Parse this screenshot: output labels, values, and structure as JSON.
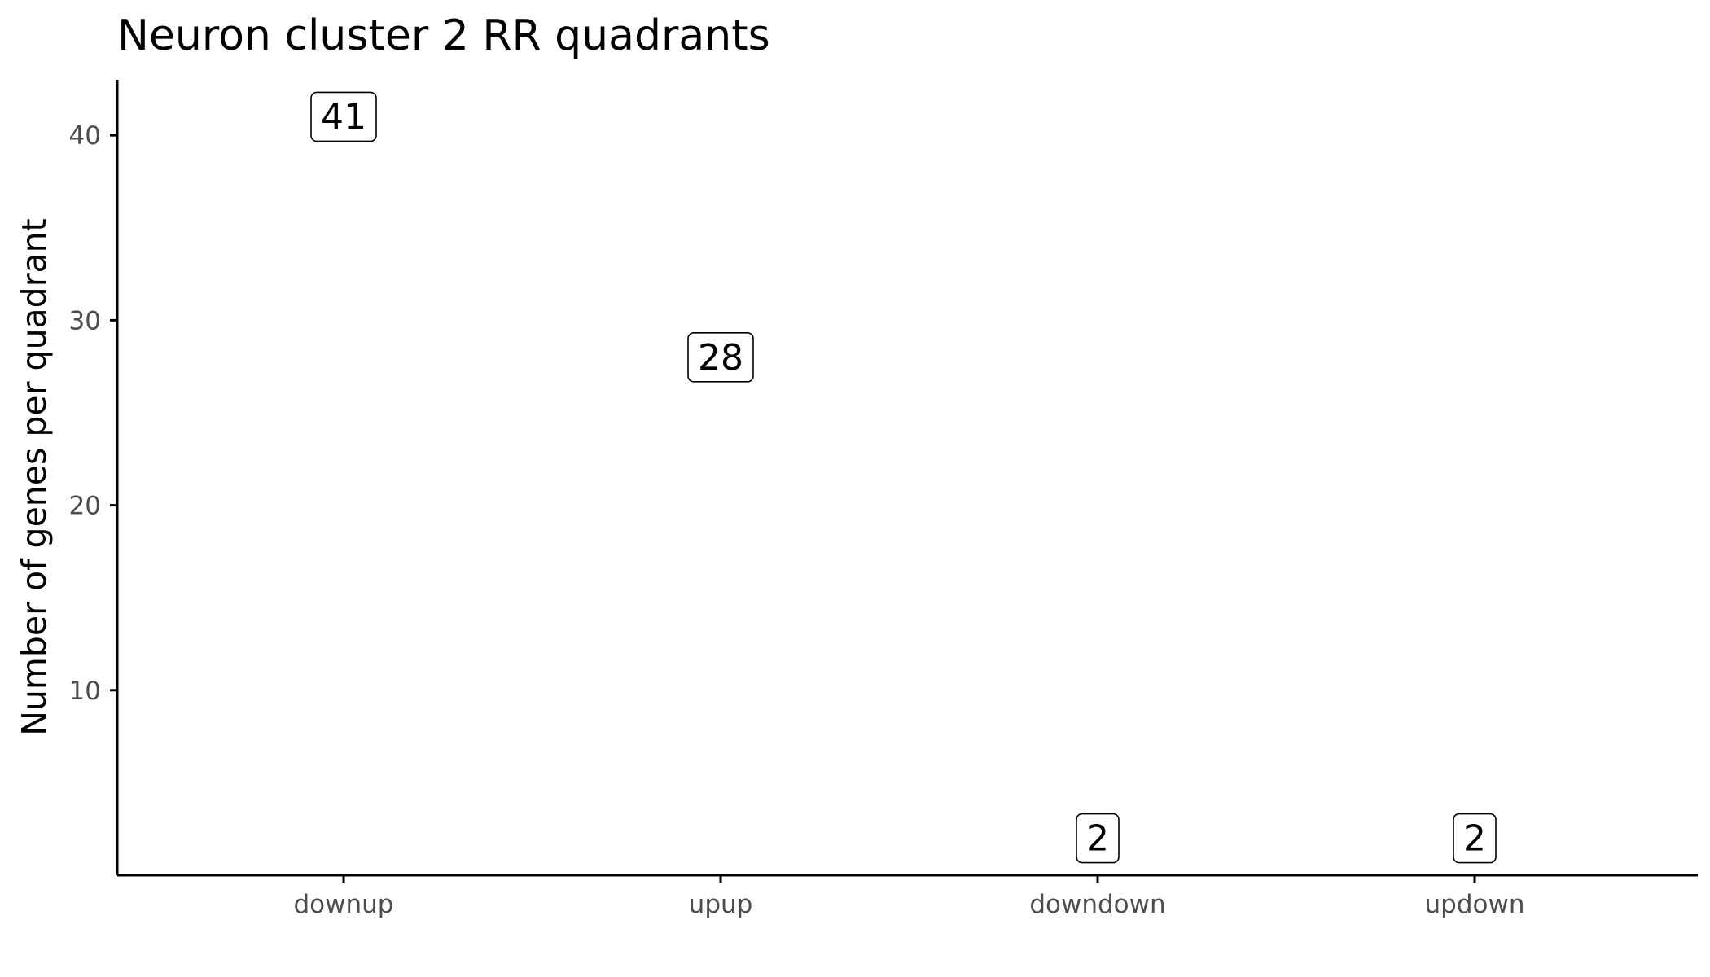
{
  "chart_data": {
    "type": "scatter",
    "title": "Neuron cluster 2 RR quadrants",
    "xlabel": "",
    "ylabel": "Number of genes per quadrant",
    "categories": [
      "downup",
      "upup",
      "downdown",
      "updown"
    ],
    "values": [
      41,
      28,
      2,
      2
    ],
    "data_labels": [
      "41",
      "28",
      "2",
      "2"
    ],
    "y_ticks": [
      10,
      20,
      30,
      40
    ],
    "y_tick_labels": [
      "10",
      "20",
      "30",
      "40"
    ],
    "ylim": [
      0,
      43
    ],
    "grid": false,
    "legend": "none"
  }
}
